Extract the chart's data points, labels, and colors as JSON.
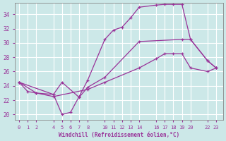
{
  "xlabel": "Windchill (Refroidissement éolien,°C)",
  "bg_color": "#cce8e8",
  "grid_color": "#ffffff",
  "line_color": "#993399",
  "x_ticks": [
    0,
    1,
    2,
    4,
    5,
    6,
    7,
    8,
    10,
    11,
    12,
    13,
    14,
    16,
    17,
    18,
    19,
    20,
    22,
    23
  ],
  "x_lim": [
    -0.5,
    23.8
  ],
  "y_lim": [
    19.2,
    35.6
  ],
  "y_ticks": [
    20,
    22,
    24,
    26,
    28,
    30,
    32,
    34
  ],
  "series1_x": [
    0,
    1,
    2,
    4,
    5,
    6,
    7,
    8,
    10,
    11,
    12,
    13,
    14,
    16,
    17,
    18,
    19,
    20,
    22,
    23
  ],
  "series1_y": [
    24.5,
    23.2,
    23.0,
    22.8,
    20.0,
    20.3,
    22.5,
    24.8,
    30.5,
    31.8,
    32.2,
    33.5,
    35.0,
    35.3,
    35.4,
    35.4,
    35.4,
    30.5,
    27.5,
    26.5
  ],
  "series2_x": [
    0,
    4,
    5,
    7,
    8,
    10,
    14,
    19,
    20,
    22,
    23
  ],
  "series2_y": [
    24.5,
    22.8,
    24.5,
    22.4,
    23.8,
    25.2,
    30.2,
    30.5,
    30.5,
    27.5,
    26.5
  ],
  "series3_x": [
    0,
    2,
    4,
    8,
    10,
    14,
    16,
    17,
    18,
    19,
    20,
    22,
    23
  ],
  "series3_y": [
    24.5,
    23.0,
    22.5,
    23.5,
    24.5,
    26.5,
    27.8,
    28.5,
    28.5,
    28.5,
    26.5,
    26.0,
    26.5
  ]
}
